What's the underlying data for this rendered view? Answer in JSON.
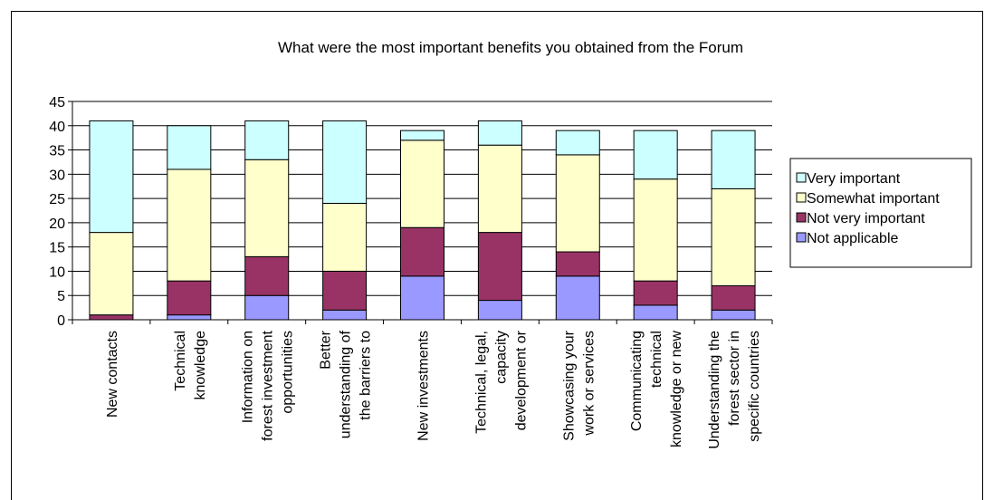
{
  "chart_data": {
    "type": "bar",
    "stacked": true,
    "title": "What were the most important benefits you obtained from the Forum",
    "xlabel": "",
    "ylabel": "",
    "ylim": [
      0,
      45
    ],
    "yticks": [
      0,
      5,
      10,
      15,
      20,
      25,
      30,
      35,
      40,
      45
    ],
    "grid": true,
    "legend_position": "right",
    "categories": [
      [
        "New contacts"
      ],
      [
        "Technical",
        "knowledge"
      ],
      [
        "Information on",
        "forest investment",
        "opportunities"
      ],
      [
        "Better",
        "understanding of",
        "the barriers to"
      ],
      [
        "New investments"
      ],
      [
        "Technical, legal,",
        "capacity",
        "development or"
      ],
      [
        "Showcasing your",
        "work or services"
      ],
      [
        "Communicating",
        "technical",
        "knowledge or new"
      ],
      [
        "Understanding the",
        "forest sector in",
        "specific countries"
      ]
    ],
    "series": [
      {
        "name": "Not applicable",
        "color": "#9999ff",
        "values": [
          0,
          1,
          5,
          2,
          9,
          4,
          9,
          3,
          2
        ]
      },
      {
        "name": "Not very important",
        "color": "#993366",
        "values": [
          1,
          7,
          8,
          8,
          10,
          14,
          5,
          5,
          5
        ]
      },
      {
        "name": "Somewhat important",
        "color": "#ffffcc",
        "values": [
          17,
          23,
          20,
          14,
          18,
          18,
          20,
          21,
          20
        ]
      },
      {
        "name": "Very important",
        "color": "#ccffff",
        "values": [
          23,
          9,
          8,
          17,
          2,
          5,
          5,
          10,
          12
        ]
      }
    ],
    "legend_order": [
      "Very important",
      "Somewhat important",
      "Not very important",
      "Not applicable"
    ]
  }
}
